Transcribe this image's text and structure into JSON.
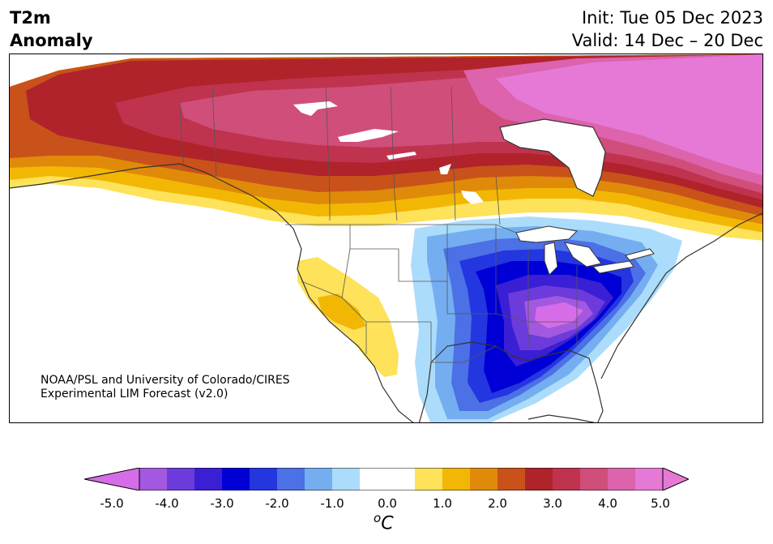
{
  "title": {
    "line1": "T2m",
    "line2": "Anomaly",
    "init": "Init: Tue 05 Dec 2023",
    "valid": "Valid: 14 Dec – 20 Dec"
  },
  "credit": {
    "line1": "NOAA/PSL and University of Colorado/CIRES",
    "line2": "Experimental LIM Forecast (v2.0)"
  },
  "colorbar": {
    "ticks": [
      "-5.0",
      "-4.0",
      "-3.0",
      "-2.0",
      "-1.0",
      "0.0",
      "1.0",
      "2.0",
      "3.0",
      "4.0",
      "5.0"
    ],
    "units_base": "C",
    "units_sup": "o",
    "colors": [
      "#d66de8",
      "#a358e0",
      "#6c3bdc",
      "#3a1fd4",
      "#0000d6",
      "#2436e0",
      "#4c70e6",
      "#74aef0",
      "#acdcfb",
      "#ffffff",
      "#ffffff",
      "#fde25a",
      "#f2b705",
      "#e08a0a",
      "#c8521a",
      "#b0232a",
      "#c0334f",
      "#d04e7a",
      "#dc63ac",
      "#e678d6"
    ],
    "extend_min_color": "#d66de8",
    "extend_max_color": "#e678d6"
  }
}
